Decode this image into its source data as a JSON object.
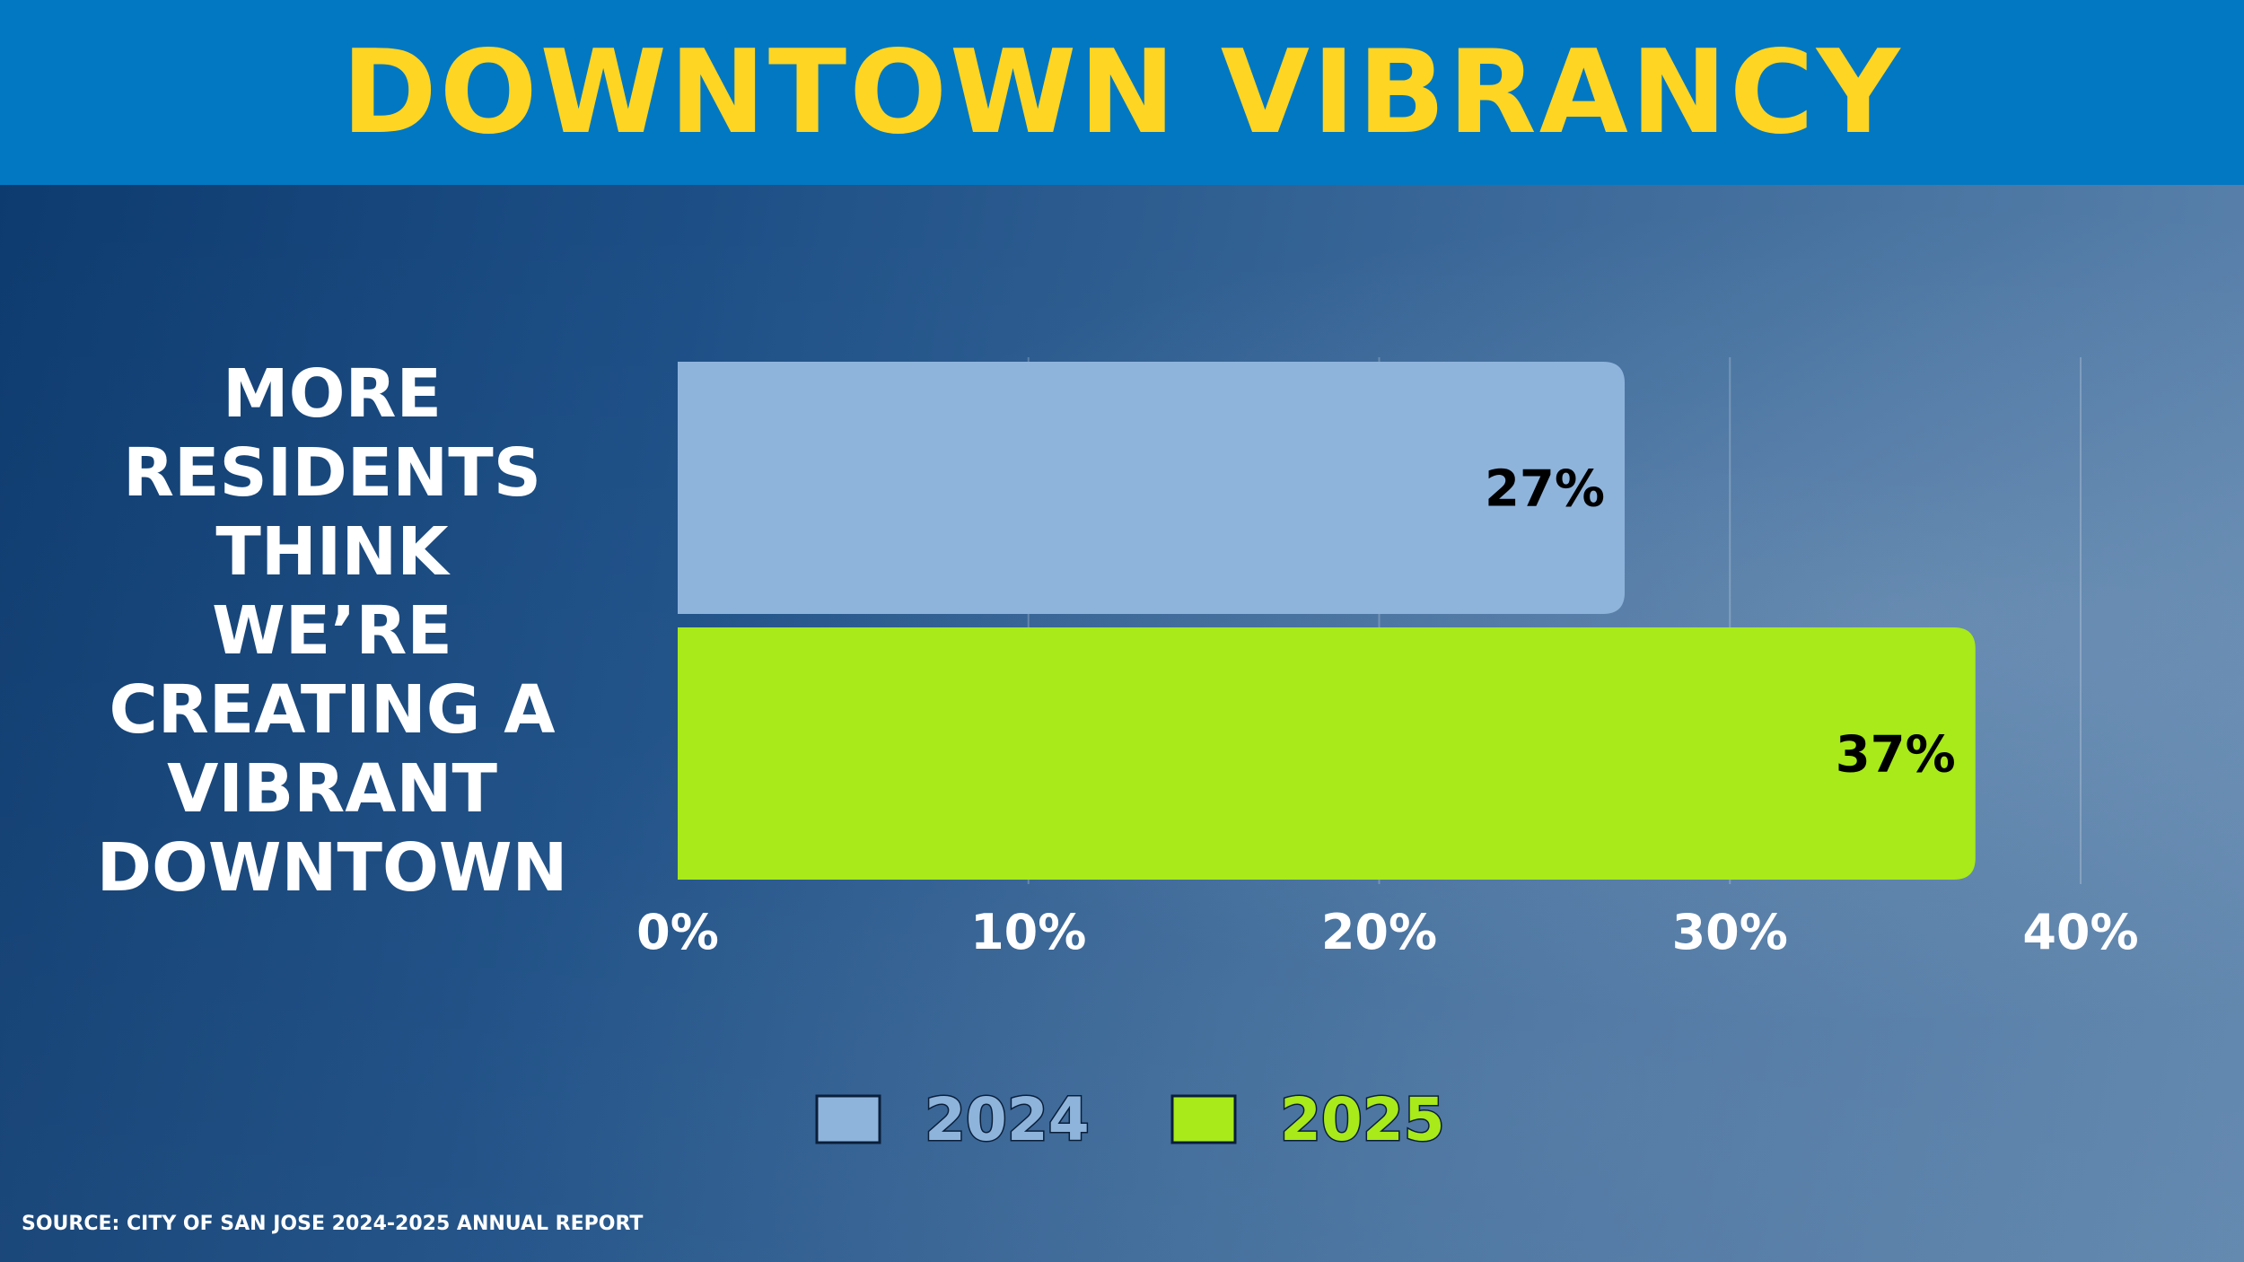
{
  "header": {
    "title": "DOWNTOWN VIBRANCY"
  },
  "label_lines": [
    "MORE",
    "RESIDENTS",
    "THINK",
    "WE’RE",
    "CREATING A",
    "VIBRANT",
    "DOWNTOWN"
  ],
  "source": "SOURCE: CITY OF SAN JOSE 2024-2025 ANNUAL REPORT",
  "chart_data": {
    "type": "bar",
    "orientation": "horizontal",
    "title": "",
    "xlabel": "",
    "ylabel": "",
    "xlim": [
      0,
      40
    ],
    "x_ticks": [
      "0%",
      "10%",
      "20%",
      "30%",
      "40%"
    ],
    "grid": true,
    "legend_position": "bottom",
    "series": [
      {
        "name": "2024",
        "value": 27,
        "label": "27%",
        "color": "#8fb4dc"
      },
      {
        "name": "2025",
        "value": 37,
        "label": "37%",
        "color": "#a8ea1a"
      }
    ]
  }
}
